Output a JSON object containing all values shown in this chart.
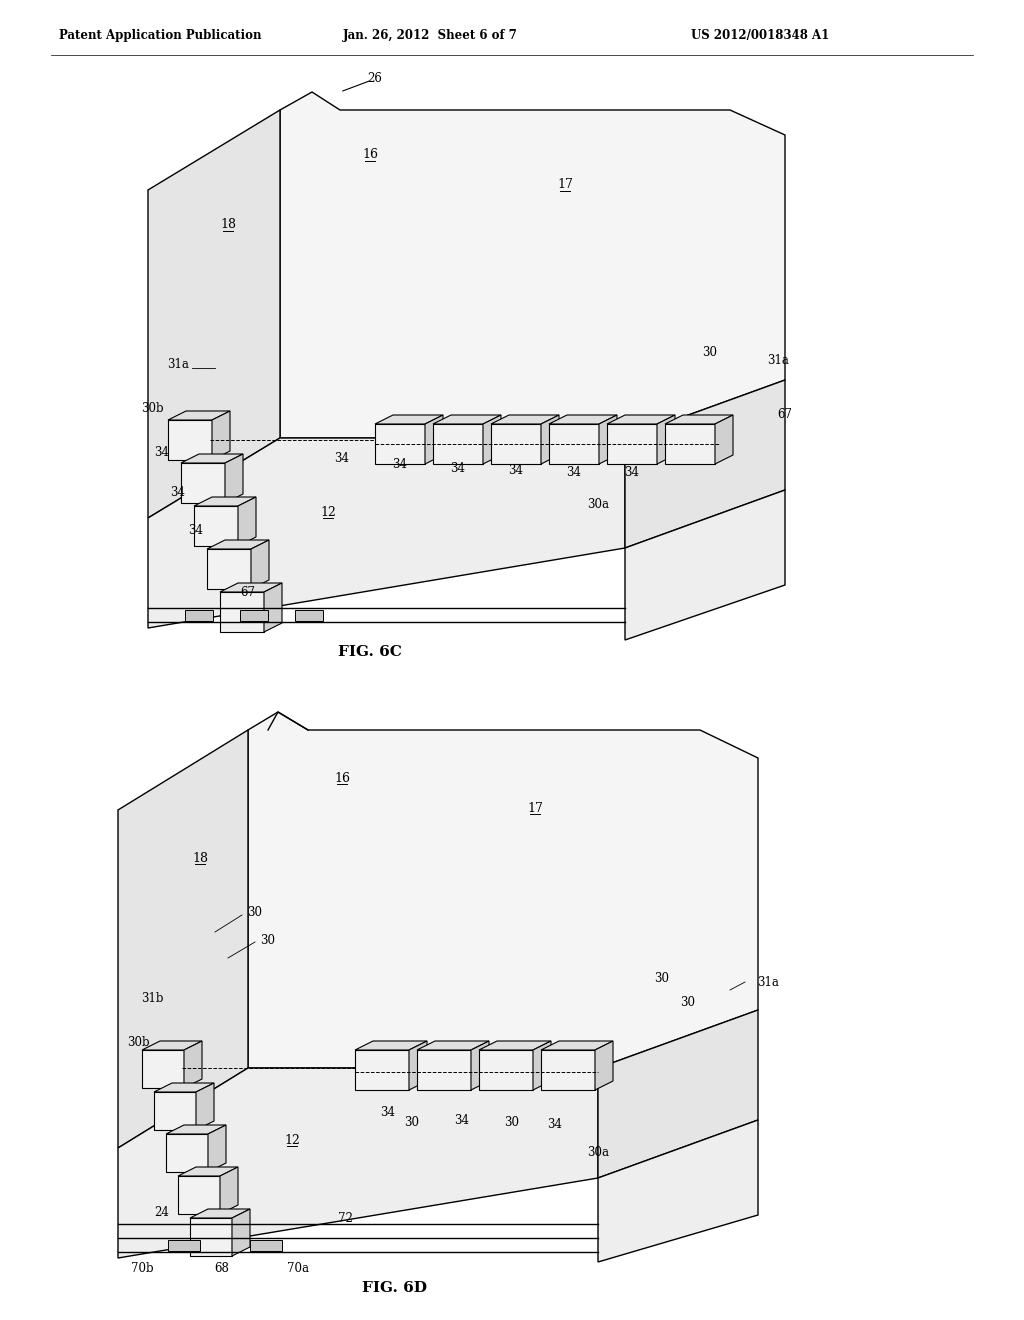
{
  "header_left": "Patent Application Publication",
  "header_mid": "Jan. 26, 2012  Sheet 6 of 7",
  "header_right": "US 2012/0018348 A1",
  "fig_c_label": "FIG. 6C",
  "fig_d_label": "FIG. 6D",
  "bg_color": "#ffffff",
  "line_color": "#000000",
  "fill_light": "#f5f5f5",
  "fill_mid": "#e5e5e5",
  "fill_floor": "#eeeeee",
  "cube_front": "#f2f2f2",
  "cube_top": "#e0e0e0",
  "cube_side": "#d0d0d0"
}
